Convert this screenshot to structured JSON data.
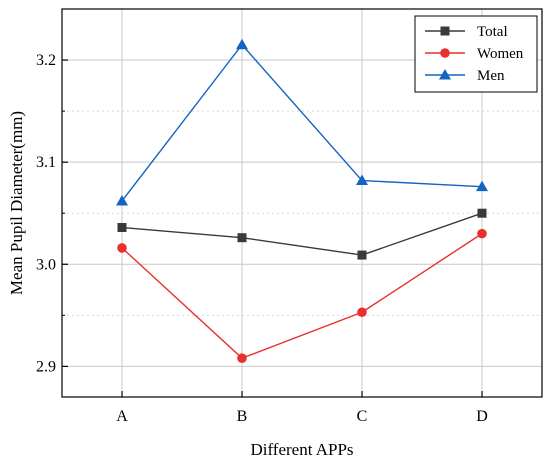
{
  "chart_data": {
    "type": "line",
    "categories": [
      "A",
      "B",
      "C",
      "D"
    ],
    "series": [
      {
        "name": "Total",
        "values": [
          3.036,
          3.026,
          3.009,
          3.05
        ],
        "color": "#3a3a3a",
        "marker": "square"
      },
      {
        "name": "Women",
        "values": [
          3.016,
          2.908,
          2.953,
          3.03
        ],
        "color": "#e8312f",
        "marker": "circle"
      },
      {
        "name": "Men",
        "values": [
          3.062,
          3.215,
          3.082,
          3.076
        ],
        "color": "#1565c0",
        "marker": "triangle"
      }
    ],
    "xlabel": "Different APPs",
    "ylabel": "Mean Pupil Diameter(mm)",
    "ylim": [
      2.87,
      3.25
    ],
    "yticks": [
      2.9,
      3.0,
      3.1,
      3.2
    ],
    "yticks_labels": [
      "2.9",
      "3.0",
      "3.1",
      "3.2"
    ],
    "grid": true,
    "legend_position": "top-right"
  }
}
